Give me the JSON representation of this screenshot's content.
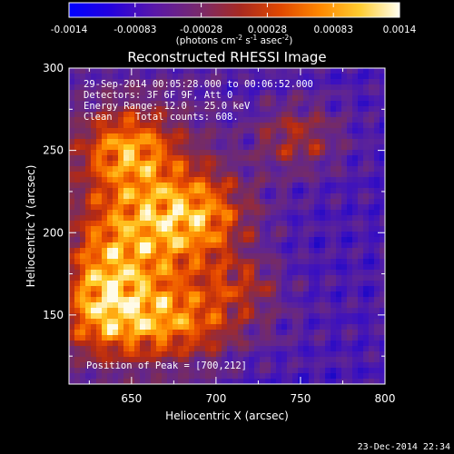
{
  "colorbar": {
    "ticks": [
      "-0.0014",
      "-0.00083",
      "-0.00028",
      "0.00028",
      "0.00083",
      "0.0014"
    ],
    "unit_text": "(photons cm",
    "unit_exp1": "-2",
    "unit_mid1": " s",
    "unit_exp2": "-1",
    "unit_mid2": " asec",
    "unit_exp3": "-2",
    "unit_tail": ")"
  },
  "chart_data": {
    "type": "heatmap",
    "title": "Reconstructed RHESSI Image",
    "xlabel": "Heliocentric X (arcsec)",
    "ylabel": "Heliocentric Y (arcsec)",
    "xlim": [
      613,
      800
    ],
    "ylim": [
      108,
      300
    ],
    "xticks": [
      "650",
      "700",
      "750",
      "800"
    ],
    "yticks": [
      "150",
      "200",
      "250",
      "300"
    ],
    "colorbar_range": [
      -0.0014,
      0.0014
    ],
    "colormap": [
      "#0000cc",
      "#3b10c0",
      "#5e2496",
      "#7a2c5c",
      "#b52a12",
      "#e84b00",
      "#ff8c00",
      "#ffd02a",
      "#fffbe8"
    ],
    "info_lines": [
      "29-Sep-2014 00:05:28.000 to 00:06:52.000",
      "Detectors: 3F 6F 9F, Att 0",
      "Energy Range: 12.0 - 25.0 keV",
      "Clean    Total counts: 608."
    ],
    "peak_label": "Position of Peak = [700,212]",
    "peak": [
      700,
      212
    ]
  },
  "footer": {
    "date": "23-Dec-2014 22:34"
  }
}
